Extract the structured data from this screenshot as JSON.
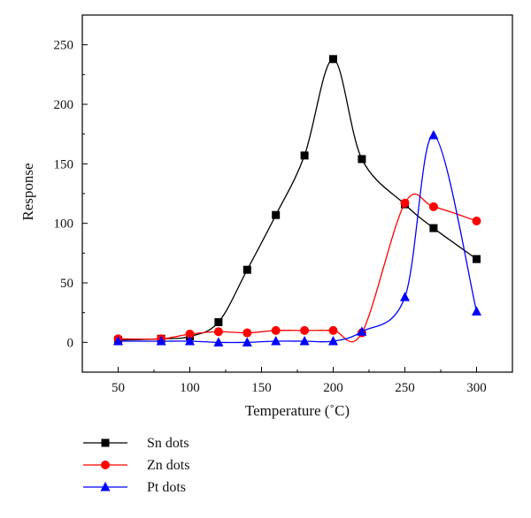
{
  "chart_data": {
    "type": "line",
    "xlabel": "Temperature (˚C)",
    "ylabel": "Response",
    "xlim": [
      25,
      325
    ],
    "ylim": [
      -25,
      275
    ],
    "xticks": [
      50,
      100,
      150,
      200,
      250,
      300
    ],
    "yticks": [
      0,
      50,
      100,
      150,
      200,
      250
    ],
    "grid": false,
    "legend_position": "below",
    "series": [
      {
        "name": "Sn dots",
        "color": "#000000",
        "marker": "square",
        "x": [
          50,
          80,
          100,
          120,
          140,
          160,
          180,
          200,
          220,
          250,
          270,
          300
        ],
        "y": [
          2,
          3,
          5,
          17,
          61,
          107,
          157,
          238,
          154,
          116,
          96,
          70
        ]
      },
      {
        "name": "Zn dots",
        "color": "#ff0000",
        "marker": "circle",
        "x": [
          50,
          80,
          100,
          120,
          140,
          160,
          180,
          200,
          220,
          250,
          270,
          300
        ],
        "y": [
          3,
          3,
          7,
          9,
          8,
          10,
          10,
          10,
          8,
          117,
          114,
          102
        ]
      },
      {
        "name": "Pt dots",
        "color": "#0000ff",
        "marker": "triangle",
        "x": [
          50,
          80,
          100,
          120,
          140,
          160,
          180,
          200,
          220,
          250,
          270,
          300
        ],
        "y": [
          1,
          1,
          1,
          0,
          0,
          1,
          1,
          1,
          9,
          38,
          174,
          26
        ]
      }
    ]
  }
}
